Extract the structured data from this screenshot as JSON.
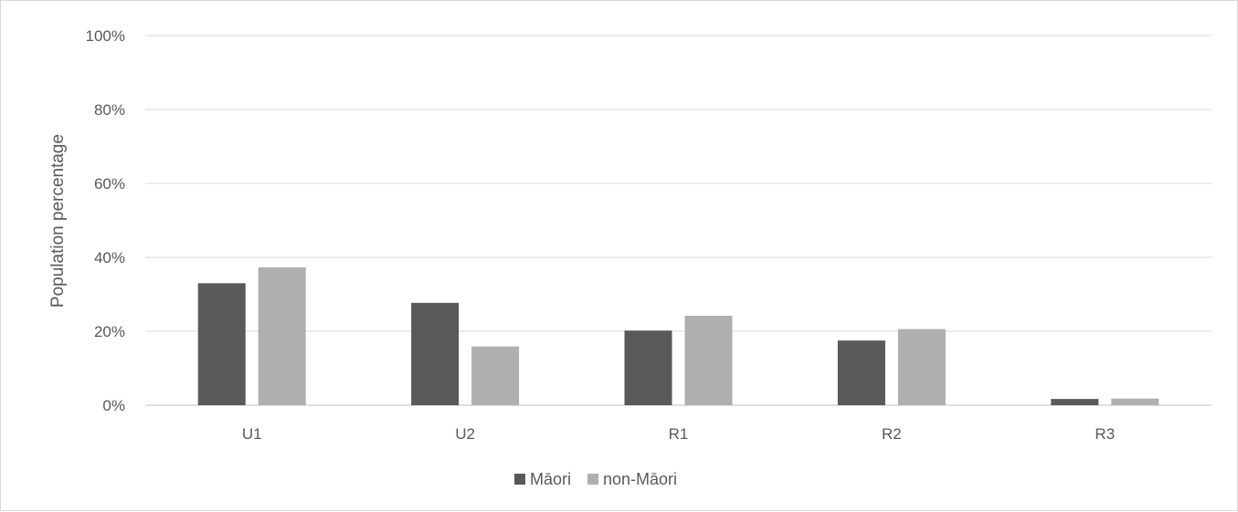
{
  "chart_data": {
    "type": "bar",
    "title": "",
    "xlabel": "",
    "ylabel": "Population percentage",
    "categories": [
      "U1",
      "U2",
      "R1",
      "R2",
      "R3"
    ],
    "series": [
      {
        "name": "Māori",
        "color": "#595959",
        "values": [
          33,
          27.7,
          20.2,
          17.5,
          1.7
        ]
      },
      {
        "name": "non-Māori",
        "color": "#afafaf",
        "values": [
          37.3,
          15.9,
          24.2,
          20.6,
          1.8
        ]
      }
    ],
    "ylim": [
      0,
      100
    ],
    "yticks": [
      0,
      20,
      40,
      60,
      80,
      100
    ],
    "ytick_labels": [
      "0%",
      "20%",
      "40%",
      "60%",
      "80%",
      "100%"
    ],
    "grid": true,
    "legend_position": "bottom"
  }
}
